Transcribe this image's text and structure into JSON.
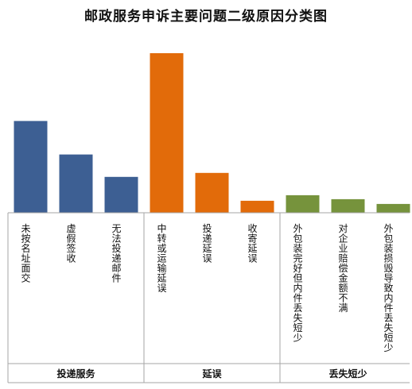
{
  "chart_data": {
    "type": "bar",
    "title": "邮政服务申诉主要问题二级原因分类图",
    "groups": [
      {
        "name": "投递服务",
        "categories": [
          "未按名址面交",
          "虚假签收",
          "无法投递邮件"
        ],
        "values": [
          115,
          73,
          45
        ],
        "color": "#3d5f93"
      },
      {
        "name": "延误",
        "categories": [
          "中转或运输延误",
          "投递延误",
          "收寄延误"
        ],
        "values": [
          200,
          50,
          15
        ],
        "color": "#e26b0a"
      },
      {
        "name": "丢失短少",
        "categories": [
          "外包装完好但内件丢失短少",
          "对企业赔偿金额不满",
          "外包装损毁导致内件丢失短少"
        ],
        "values": [
          22,
          17,
          11
        ],
        "color": "#76933c"
      }
    ],
    "ylim": [
      0,
      200
    ],
    "grid": false,
    "legend": "none"
  }
}
